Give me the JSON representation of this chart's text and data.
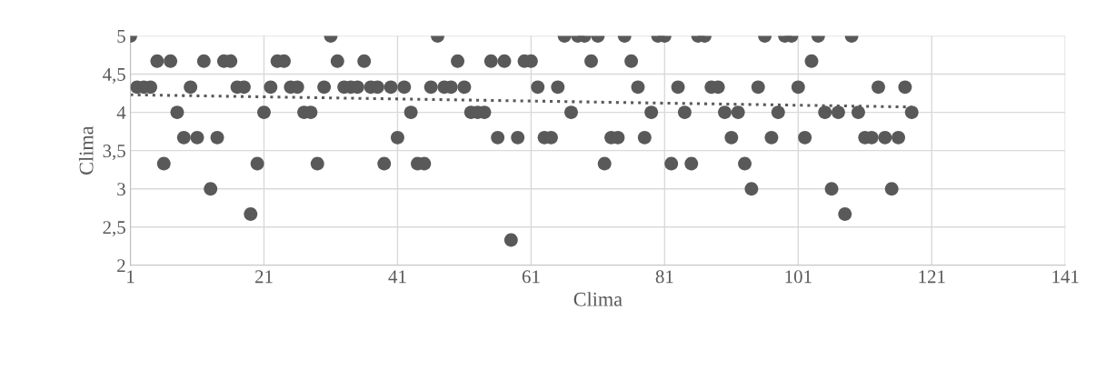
{
  "chart_data": {
    "type": "scatter",
    "xlabel": "Clima",
    "ylabel": "Clima",
    "xlim": [
      1,
      141
    ],
    "xticks": [
      1,
      21,
      41,
      61,
      81,
      101,
      121,
      141
    ],
    "ylim": [
      2,
      5
    ],
    "yticks": [
      2,
      {
        "value": 2.5,
        "label": "2,5"
      },
      3,
      {
        "value": 3.5,
        "label": "3,5"
      },
      4,
      {
        "value": 4.5,
        "label": "4,5"
      },
      5
    ],
    "grid": true,
    "marker": "circle",
    "legend": false,
    "series": [
      {
        "color": "#595959",
        "x": [
          1,
          2,
          3,
          4,
          5,
          6,
          7,
          8,
          9,
          10,
          11,
          12,
          13,
          14,
          15,
          16,
          17,
          18,
          19,
          20,
          21,
          22,
          23,
          24,
          25,
          26,
          27,
          28,
          29,
          30,
          31,
          32,
          33,
          34,
          35,
          36,
          37,
          38,
          39,
          40,
          41,
          42,
          43,
          44,
          45,
          46,
          47,
          48,
          49,
          50,
          51,
          52,
          53,
          54,
          55,
          56,
          57,
          58,
          59,
          60,
          61,
          62,
          63,
          64,
          65,
          66,
          67,
          68,
          69,
          70,
          71,
          72,
          73,
          74,
          75,
          76,
          77,
          78,
          79,
          80,
          81,
          82,
          83,
          84,
          85,
          86,
          87,
          88,
          89,
          90,
          91,
          92,
          93,
          94,
          95,
          96,
          97,
          98,
          99,
          100,
          101,
          102,
          103,
          104,
          105,
          106,
          107,
          108,
          109,
          110,
          111,
          112,
          113,
          114,
          115,
          116,
          117,
          118
        ],
        "values": [
          5,
          4.33,
          4.33,
          4.33,
          4.67,
          3.33,
          4.67,
          4,
          3.67,
          4.33,
          3.67,
          4.67,
          3,
          3.67,
          4.67,
          4.67,
          4.33,
          4.33,
          2.67,
          3.33,
          4,
          4.33,
          4.67,
          4.67,
          4.33,
          4.33,
          4,
          4,
          3.33,
          4.33,
          5,
          4.67,
          4.33,
          4.33,
          4.33,
          4.67,
          4.33,
          4.33,
          3.33,
          4.33,
          3.67,
          4.33,
          4,
          3.33,
          3.33,
          4.33,
          5,
          4.33,
          4.33,
          4.67,
          4.33,
          4,
          4,
          4,
          4.67,
          3.67,
          4.67,
          2.33,
          3.67,
          4.67,
          4.67,
          4.33,
          3.67,
          3.67,
          4.33,
          5,
          4,
          5,
          5,
          4.67,
          5,
          3.33,
          3.67,
          3.67,
          5,
          4.67,
          4.33,
          3.67,
          4,
          5,
          5,
          3.33,
          4.33,
          4,
          3.33,
          5,
          5,
          4.33,
          4.33,
          4,
          3.67,
          4,
          3.33,
          3,
          4.33,
          5,
          3.67,
          4,
          5,
          5,
          4.33,
          3.67,
          4.67,
          5,
          4,
          3,
          4,
          2.67,
          5,
          4,
          3.67,
          3.67,
          4.33,
          3.67,
          3,
          3.67,
          4.33,
          4
        ]
      },
      {
        "type": "line",
        "color": "#595959",
        "line_style": "dotted",
        "marker": "none",
        "x": [
          1,
          118
        ],
        "values": [
          4.23,
          4.07
        ]
      }
    ]
  }
}
